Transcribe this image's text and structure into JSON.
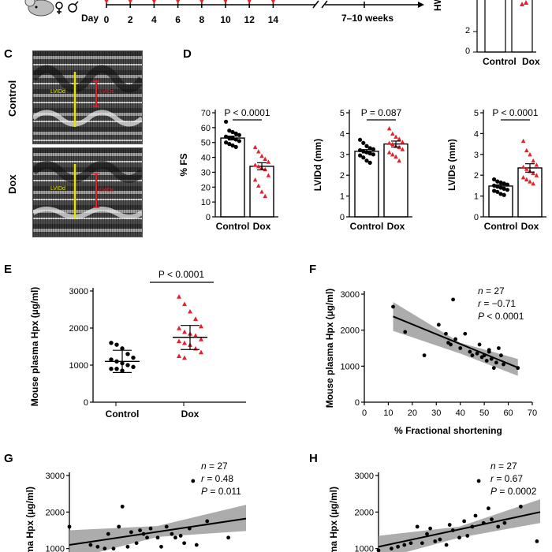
{
  "panel_letters": {
    "c": "C",
    "d": "D",
    "e": "E",
    "f": "F",
    "g": "G",
    "h": "H"
  },
  "timeline": {
    "day_label": "Day",
    "days": [
      "0",
      "2",
      "4",
      "6",
      "8",
      "10",
      "12",
      "14"
    ],
    "end_label": "7–10 weeks"
  },
  "panel_b_partial": {
    "ylabel_fragment": "HW/TL (",
    "ticks": [
      "2",
      "0"
    ],
    "categories": [
      "Control",
      "Dox"
    ]
  },
  "panel_c": {
    "row_labels": [
      "Control",
      "Dox"
    ],
    "lvid_label": "LVIDd",
    "lvids_label": "LVIDs"
  },
  "colors": {
    "control": "#000000",
    "dox": "#e8202a",
    "band": "#9e9e9e"
  },
  "chart_data": [
    {
      "id": "D-FS",
      "type": "scatter",
      "subtype": "bar_with_points",
      "ylabel": "% FS",
      "ylim": [
        0,
        70
      ],
      "yticks": [
        0,
        10,
        20,
        30,
        40,
        50,
        60,
        70
      ],
      "categories": [
        "Control",
        "Dox"
      ],
      "means": [
        53,
        34
      ],
      "sem": [
        1.3,
        2.4
      ],
      "annotation": "P < 0.0001",
      "points": [
        [
          64,
          58,
          57,
          56,
          55,
          54,
          53,
          53,
          52,
          51,
          50,
          49,
          48,
          47
        ],
        [
          47,
          44,
          41,
          39,
          37,
          35,
          34,
          33,
          32,
          28,
          25,
          21,
          17,
          14
        ]
      ]
    },
    {
      "id": "D-LVIDd",
      "type": "scatter",
      "subtype": "bar_with_points",
      "ylabel": "LVIDd (mm)",
      "ylim": [
        0,
        5
      ],
      "yticks": [
        0,
        1,
        2,
        3,
        4,
        5
      ],
      "categories": [
        "Control",
        "Dox"
      ],
      "means": [
        3.15,
        3.5
      ],
      "sem": [
        0.08,
        0.14
      ],
      "annotation": "P = 0.087",
      "points": [
        [
          3.7,
          3.55,
          3.4,
          3.3,
          3.25,
          3.2,
          3.15,
          3.1,
          3.05,
          3.0,
          2.95,
          2.85,
          2.7,
          2.6
        ],
        [
          4.25,
          4.0,
          3.85,
          3.75,
          3.6,
          3.55,
          3.5,
          3.4,
          3.35,
          3.25,
          3.1,
          3.0,
          2.9,
          2.7
        ]
      ]
    },
    {
      "id": "D-LVIDs",
      "type": "scatter",
      "subtype": "bar_with_points",
      "ylabel": "LVIDs (mm)",
      "ylim": [
        0,
        5
      ],
      "yticks": [
        0,
        1,
        2,
        3,
        4,
        5
      ],
      "categories": [
        "Control",
        "Dox"
      ],
      "means": [
        1.48,
        2.35
      ],
      "sem": [
        0.06,
        0.2
      ],
      "annotation": "P < 0.0001",
      "points": [
        [
          1.8,
          1.7,
          1.65,
          1.6,
          1.55,
          1.5,
          1.45,
          1.4,
          1.35,
          1.3,
          1.25,
          1.2,
          1.1,
          1.05
        ],
        [
          3.65,
          3.2,
          3.0,
          2.7,
          2.5,
          2.4,
          2.3,
          2.2,
          2.1,
          2.0,
          1.9,
          1.8,
          1.7,
          1.6
        ]
      ]
    },
    {
      "id": "E",
      "type": "scatter",
      "subtype": "dot_plot_mean_sd",
      "ylabel": "Mouse plasma Hpx (µg/ml)",
      "ylim": [
        0,
        3000
      ],
      "yticks": [
        0,
        1000,
        2000,
        3000
      ],
      "categories": [
        "Control",
        "Dox"
      ],
      "means": [
        1100,
        1750
      ],
      "whisker_low": [
        800,
        1420
      ],
      "whisker_high": [
        1400,
        2070
      ],
      "annotation": "P < 0.0001",
      "points": [
        [
          1600,
          1550,
          1450,
          1300,
          1200,
          1150,
          1100,
          1050,
          1000,
          950,
          900,
          900,
          850
        ],
        [
          2850,
          2650,
          2450,
          2250,
          2050,
          2000,
          1900,
          1850,
          1800,
          1700,
          1650,
          1600,
          1550,
          1450,
          1350,
          1250,
          1200
        ]
      ]
    },
    {
      "id": "F",
      "type": "scatter",
      "subtype": "regression_with_ci",
      "xlabel": "% Fractional shortening",
      "ylabel": "Mouse plasma Hpx (µg/ml)",
      "xlim": [
        0,
        70
      ],
      "ylim": [
        0,
        3000
      ],
      "xticks": [
        0,
        10,
        20,
        30,
        40,
        50,
        60,
        70
      ],
      "yticks": [
        0,
        1000,
        2000,
        3000
      ],
      "stats": {
        "n": "27",
        "r": "−0.71",
        "p": "< 0.0001"
      },
      "fit": {
        "x": [
          12,
          64
        ],
        "y": [
          2380,
          960
        ]
      },
      "band_low": {
        "x": [
          12,
          40,
          64
        ],
        "y": [
          1980,
          1350,
          730
        ]
      },
      "band_high": {
        "x": [
          12,
          40,
          64
        ],
        "y": [
          2780,
          1650,
          1200
        ]
      },
      "x": [
        12,
        17,
        25,
        31,
        34,
        35,
        36,
        37,
        38,
        40,
        42,
        44,
        45,
        47,
        48,
        49,
        50,
        51,
        52,
        52,
        53,
        54,
        55,
        56,
        57,
        58,
        64
      ],
      "y": [
        2650,
        1950,
        1300,
        2150,
        1900,
        1650,
        1600,
        2850,
        1750,
        1500,
        1900,
        1400,
        1300,
        1350,
        1600,
        1250,
        1300,
        1150,
        1400,
        1450,
        1200,
        950,
        1100,
        1500,
        1300,
        1050,
        950
      ]
    },
    {
      "id": "G",
      "type": "scatter",
      "subtype": "regression_with_ci",
      "ylabel": "Plasma Hpx (µg/ml)",
      "ylim": [
        0,
        3000
      ],
      "yticks": [
        1000,
        2000,
        3000
      ],
      "stats": {
        "n": "27",
        "r": "0.48",
        "p": "0.011"
      },
      "fit": {
        "x": [
          0,
          1
        ],
        "y": [
          1100,
          1820
        ]
      },
      "band_low": {
        "x": [
          0,
          0.5,
          1
        ],
        "y": [
          700,
          1320,
          1480
        ]
      },
      "band_high": {
        "x": [
          0,
          0.5,
          1
        ],
        "y": [
          1500,
          1620,
          2200
        ]
      },
      "x": [
        0.0,
        0.12,
        0.16,
        0.2,
        0.22,
        0.25,
        0.28,
        0.3,
        0.33,
        0.35,
        0.38,
        0.4,
        0.42,
        0.44,
        0.46,
        0.5,
        0.52,
        0.55,
        0.58,
        0.6,
        0.63,
        0.65,
        0.68,
        0.7,
        0.72,
        0.78,
        0.9
      ],
      "y": [
        1600,
        1100,
        1050,
        1000,
        1400,
        1000,
        1600,
        2150,
        1050,
        1450,
        1150,
        1500,
        1400,
        1300,
        1550,
        1300,
        1050,
        1600,
        1400,
        1300,
        1350,
        1150,
        1550,
        2850,
        1100,
        1750,
        1300
      ]
    },
    {
      "id": "H",
      "type": "scatter",
      "subtype": "regression_with_ci",
      "ylabel": "Plasma Hpx (µg/ml)",
      "ylim": [
        0,
        3000
      ],
      "yticks": [
        1000,
        2000,
        3000
      ],
      "stats": {
        "n": "27",
        "r": "0.67",
        "p": "0.0002"
      },
      "fit": {
        "x": [
          0,
          1
        ],
        "y": [
          1050,
          2000
        ]
      },
      "band_low": {
        "x": [
          0,
          0.5,
          1
        ],
        "y": [
          700,
          1300,
          1700
        ]
      },
      "band_high": {
        "x": [
          0,
          0.5,
          1
        ],
        "y": [
          1350,
          1600,
          2350
        ]
      },
      "x": [
        0.0,
        0.08,
        0.12,
        0.16,
        0.2,
        0.24,
        0.27,
        0.3,
        0.32,
        0.35,
        0.38,
        0.42,
        0.44,
        0.46,
        0.5,
        0.53,
        0.55,
        0.58,
        0.6,
        0.62,
        0.65,
        0.68,
        0.7,
        0.74,
        0.78,
        0.88,
        0.98
      ],
      "y": [
        950,
        1000,
        1050,
        1100,
        1150,
        1600,
        1150,
        1400,
        1550,
        1200,
        1250,
        1100,
        1650,
        1500,
        1300,
        1750,
        1350,
        1600,
        1900,
        2850,
        1700,
        2100,
        1800,
        1600,
        1700,
        2150,
        1200
      ]
    }
  ]
}
